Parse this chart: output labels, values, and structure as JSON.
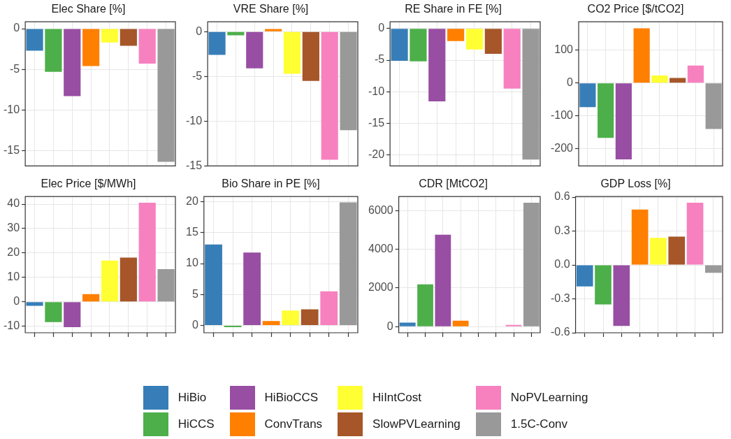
{
  "chart_data": [
    {
      "type": "bar",
      "title": "Elec Share [%]",
      "categories": [
        null,
        null,
        null,
        null,
        null,
        null,
        null,
        null
      ],
      "ylim": [
        -16.9,
        0.85
      ],
      "yticks": [
        -15,
        -10,
        -5,
        0
      ],
      "grid": true,
      "legend": "bottom",
      "tick_labels": "y",
      "series": [
        {
          "name": "HiBio",
          "color": "#377eb8",
          "values": [
            -2.7,
            null,
            null,
            null,
            null,
            null,
            null,
            null
          ]
        },
        {
          "name": "HiCCS",
          "color": "#4daf4a",
          "values": [
            null,
            -5.3,
            null,
            null,
            null,
            null,
            null,
            null
          ]
        },
        {
          "name": "HiBioCCS",
          "color": "#984ea3",
          "values": [
            null,
            null,
            -8.3,
            null,
            null,
            null,
            null,
            null
          ]
        },
        {
          "name": "ConvTrans",
          "color": "#ff7f00",
          "values": [
            null,
            null,
            null,
            -4.6,
            null,
            null,
            null,
            null
          ]
        },
        {
          "name": "HiIntCost",
          "color": "#ffff33",
          "values": [
            null,
            null,
            null,
            null,
            -1.7,
            null,
            null,
            null
          ]
        },
        {
          "name": "SlowPVLearning",
          "color": "#a65628",
          "values": [
            null,
            null,
            null,
            null,
            null,
            -2.1,
            null,
            null
          ]
        },
        {
          "name": "NoPVLearning",
          "color": "#f781bf",
          "values": [
            null,
            null,
            null,
            null,
            null,
            null,
            -4.3,
            null
          ]
        },
        {
          "name": "1.5C-Conv",
          "color": "#999999",
          "values": [
            null,
            null,
            null,
            null,
            null,
            null,
            null,
            -16.4
          ]
        }
      ]
    },
    {
      "type": "bar",
      "title": "VRE Share [%]",
      "categories": [
        null,
        null,
        null,
        null,
        null,
        null,
        null,
        null
      ],
      "ylim": [
        -15,
        1.1
      ],
      "yticks": [
        -15,
        -10,
        -5,
        0
      ],
      "grid": true,
      "tick_labels": "y",
      "series": [
        {
          "color": "#377eb8",
          "values": [
            -2.6,
            null,
            null,
            null,
            null,
            null,
            null,
            null
          ]
        },
        {
          "color": "#4daf4a",
          "values": [
            null,
            -0.4,
            null,
            null,
            null,
            null,
            null,
            null
          ]
        },
        {
          "color": "#984ea3",
          "values": [
            null,
            null,
            -4.1,
            null,
            null,
            null,
            null,
            null
          ]
        },
        {
          "color": "#ff7f00",
          "values": [
            null,
            null,
            null,
            0.3,
            null,
            null,
            null,
            null
          ]
        },
        {
          "color": "#ffff33",
          "values": [
            null,
            null,
            null,
            null,
            -4.7,
            null,
            null,
            null
          ]
        },
        {
          "color": "#a65628",
          "values": [
            null,
            null,
            null,
            null,
            null,
            -5.5,
            null,
            null
          ]
        },
        {
          "color": "#f781bf",
          "values": [
            null,
            null,
            null,
            null,
            null,
            null,
            -14.3,
            null
          ]
        },
        {
          "color": "#999999",
          "values": [
            null,
            null,
            null,
            null,
            null,
            null,
            null,
            -11.0
          ]
        }
      ]
    },
    {
      "type": "bar",
      "title": "RE Share in FE [%]",
      "categories": [
        null,
        null,
        null,
        null,
        null,
        null,
        null,
        null
      ],
      "ylim": [
        -21.7,
        1.05
      ],
      "yticks": [
        -20,
        -15,
        -10,
        -5,
        0
      ],
      "grid": true,
      "tick_labels": "y",
      "series": [
        {
          "color": "#377eb8",
          "values": [
            -5.1,
            null,
            null,
            null,
            null,
            null,
            null,
            null
          ]
        },
        {
          "color": "#4daf4a",
          "values": [
            null,
            -5.2,
            null,
            null,
            null,
            null,
            null,
            null
          ]
        },
        {
          "color": "#984ea3",
          "values": [
            null,
            null,
            -11.5,
            null,
            null,
            null,
            null,
            null
          ]
        },
        {
          "color": "#ff7f00",
          "values": [
            null,
            null,
            null,
            -2.0,
            null,
            null,
            null,
            null
          ]
        },
        {
          "color": "#ffff33",
          "values": [
            null,
            null,
            null,
            null,
            -3.3,
            null,
            null,
            null
          ]
        },
        {
          "color": "#a65628",
          "values": [
            null,
            null,
            null,
            null,
            null,
            -4.0,
            null,
            null
          ]
        },
        {
          "color": "#f781bf",
          "values": [
            null,
            null,
            null,
            null,
            null,
            null,
            -9.5,
            null
          ]
        },
        {
          "color": "#999999",
          "values": [
            null,
            null,
            null,
            null,
            null,
            null,
            null,
            -20.7
          ]
        }
      ]
    },
    {
      "type": "bar",
      "title": "CO2 Price [$/tCO2]",
      "categories": [
        null,
        null,
        null,
        null,
        null,
        null,
        null,
        null
      ],
      "ylim": [
        -254,
        187
      ],
      "yticks": [
        -200,
        -100,
        0,
        100
      ],
      "grid": true,
      "tick_labels": "y",
      "series": [
        {
          "color": "#377eb8",
          "values": [
            -74,
            null,
            null,
            null,
            null,
            null,
            null,
            null
          ]
        },
        {
          "color": "#4daf4a",
          "values": [
            null,
            -168,
            null,
            null,
            null,
            null,
            null,
            null
          ]
        },
        {
          "color": "#984ea3",
          "values": [
            null,
            null,
            -234,
            null,
            null,
            null,
            null,
            null
          ]
        },
        {
          "color": "#ff7f00",
          "values": [
            null,
            null,
            null,
            167,
            null,
            null,
            null,
            null
          ]
        },
        {
          "color": "#ffff33",
          "values": [
            null,
            null,
            null,
            null,
            23,
            null,
            null,
            null
          ]
        },
        {
          "color": "#a65628",
          "values": [
            null,
            null,
            null,
            null,
            null,
            15,
            null,
            null
          ]
        },
        {
          "color": "#f781bf",
          "values": [
            null,
            null,
            null,
            null,
            null,
            null,
            53,
            null
          ]
        },
        {
          "color": "#999999",
          "values": [
            null,
            null,
            null,
            null,
            null,
            null,
            null,
            -141
          ]
        }
      ]
    },
    {
      "type": "bar",
      "title": "Elec Price [$/MWh]",
      "categories": [
        null,
        null,
        null,
        null,
        null,
        null,
        null,
        null
      ],
      "ylim": [
        -12.7,
        43.1
      ],
      "yticks": [
        -10,
        0,
        10,
        20,
        30,
        40
      ],
      "grid": true,
      "tick_labels": "y",
      "series": [
        {
          "color": "#377eb8",
          "values": [
            -1.7,
            null,
            null,
            null,
            null,
            null,
            null,
            null
          ]
        },
        {
          "color": "#4daf4a",
          "values": [
            null,
            -8.3,
            null,
            null,
            null,
            null,
            null,
            null
          ]
        },
        {
          "color": "#984ea3",
          "values": [
            null,
            null,
            -10.4,
            null,
            null,
            null,
            null,
            null
          ]
        },
        {
          "color": "#ff7f00",
          "values": [
            null,
            null,
            null,
            3.1,
            null,
            null,
            null,
            null
          ]
        },
        {
          "color": "#ffff33",
          "values": [
            null,
            null,
            null,
            null,
            16.9,
            null,
            null,
            null
          ]
        },
        {
          "color": "#a65628",
          "values": [
            null,
            null,
            null,
            null,
            null,
            18.1,
            null,
            null
          ]
        },
        {
          "color": "#f781bf",
          "values": [
            null,
            null,
            null,
            null,
            null,
            null,
            40.6,
            null
          ]
        },
        {
          "color": "#999999",
          "values": [
            null,
            null,
            null,
            null,
            null,
            null,
            null,
            13.4
          ]
        }
      ]
    },
    {
      "type": "bar",
      "title": "Bio Share in PE [%]",
      "categories": [
        null,
        null,
        null,
        null,
        null,
        null,
        null,
        null
      ],
      "ylim": [
        -1.2,
        20.85
      ],
      "yticks": [
        0,
        5,
        10,
        15,
        20
      ],
      "grid": true,
      "tick_labels": "y",
      "series": [
        {
          "color": "#377eb8",
          "values": [
            13.1,
            null,
            null,
            null,
            null,
            null,
            null,
            null
          ]
        },
        {
          "color": "#4daf4a",
          "values": [
            null,
            -0.3,
            null,
            null,
            null,
            null,
            null,
            null
          ]
        },
        {
          "color": "#984ea3",
          "values": [
            null,
            null,
            11.8,
            null,
            null,
            null,
            null,
            null
          ]
        },
        {
          "color": "#ff7f00",
          "values": [
            null,
            null,
            null,
            0.7,
            null,
            null,
            null,
            null
          ]
        },
        {
          "color": "#ffff33",
          "values": [
            null,
            null,
            null,
            null,
            2.4,
            null,
            null,
            null
          ]
        },
        {
          "color": "#a65628",
          "values": [
            null,
            null,
            null,
            null,
            null,
            2.6,
            null,
            null
          ]
        },
        {
          "color": "#f781bf",
          "values": [
            null,
            null,
            null,
            null,
            null,
            null,
            5.5,
            null
          ]
        },
        {
          "color": "#999999",
          "values": [
            null,
            null,
            null,
            null,
            null,
            null,
            null,
            19.9
          ]
        }
      ]
    },
    {
      "type": "bar",
      "title": "CDR [MtCO2]",
      "categories": [
        null,
        null,
        null,
        null,
        null,
        null,
        null,
        null
      ],
      "ylim": [
        -320,
        6720
      ],
      "yticks": [
        0,
        2000,
        4000,
        6000
      ],
      "grid": true,
      "tick_labels": "y",
      "series": [
        {
          "color": "#377eb8",
          "values": [
            200,
            null,
            null,
            null,
            null,
            null,
            null,
            null
          ]
        },
        {
          "color": "#4daf4a",
          "values": [
            null,
            2180,
            null,
            null,
            null,
            null,
            null,
            null
          ]
        },
        {
          "color": "#984ea3",
          "values": [
            null,
            null,
            4750,
            null,
            null,
            null,
            null,
            null
          ]
        },
        {
          "color": "#ff7f00",
          "values": [
            null,
            null,
            null,
            300,
            null,
            null,
            null,
            null
          ]
        },
        {
          "color": "#ffff33",
          "values": [
            null,
            null,
            null,
            null,
            0,
            null,
            null,
            null
          ]
        },
        {
          "color": "#a65628",
          "values": [
            null,
            null,
            null,
            null,
            null,
            0,
            null,
            null
          ]
        },
        {
          "color": "#f781bf",
          "values": [
            null,
            null,
            null,
            null,
            null,
            null,
            90,
            null
          ]
        },
        {
          "color": "#999999",
          "values": [
            null,
            null,
            null,
            null,
            null,
            null,
            null,
            6400
          ]
        }
      ]
    },
    {
      "type": "bar",
      "title": "GDP Loss [%]",
      "categories": [
        null,
        null,
        null,
        null,
        null,
        null,
        null,
        null
      ],
      "ylim": [
        -0.6,
        0.605
      ],
      "yticks": [
        -0.6,
        -0.3,
        {
          "value": 0,
          "label": "0.0"
        },
        0.3,
        0.6
      ],
      "grid": true,
      "tick_labels": "y",
      "series": [
        {
          "color": "#377eb8",
          "values": [
            -0.19,
            null,
            null,
            null,
            null,
            null,
            null,
            null
          ]
        },
        {
          "color": "#4daf4a",
          "values": [
            null,
            -0.35,
            null,
            null,
            null,
            null,
            null,
            null
          ]
        },
        {
          "color": "#984ea3",
          "values": [
            null,
            null,
            -0.54,
            null,
            null,
            null,
            null,
            null
          ]
        },
        {
          "color": "#ff7f00",
          "values": [
            null,
            null,
            null,
            0.49,
            null,
            null,
            null,
            null
          ]
        },
        {
          "color": "#ffff33",
          "values": [
            null,
            null,
            null,
            null,
            0.24,
            null,
            null,
            null
          ]
        },
        {
          "color": "#a65628",
          "values": [
            null,
            null,
            null,
            null,
            null,
            0.25,
            null,
            null
          ]
        },
        {
          "color": "#f781bf",
          "values": [
            null,
            null,
            null,
            null,
            null,
            null,
            0.55,
            null
          ]
        },
        {
          "color": "#999999",
          "values": [
            null,
            null,
            null,
            null,
            null,
            null,
            null,
            -0.07
          ]
        }
      ]
    }
  ]
}
